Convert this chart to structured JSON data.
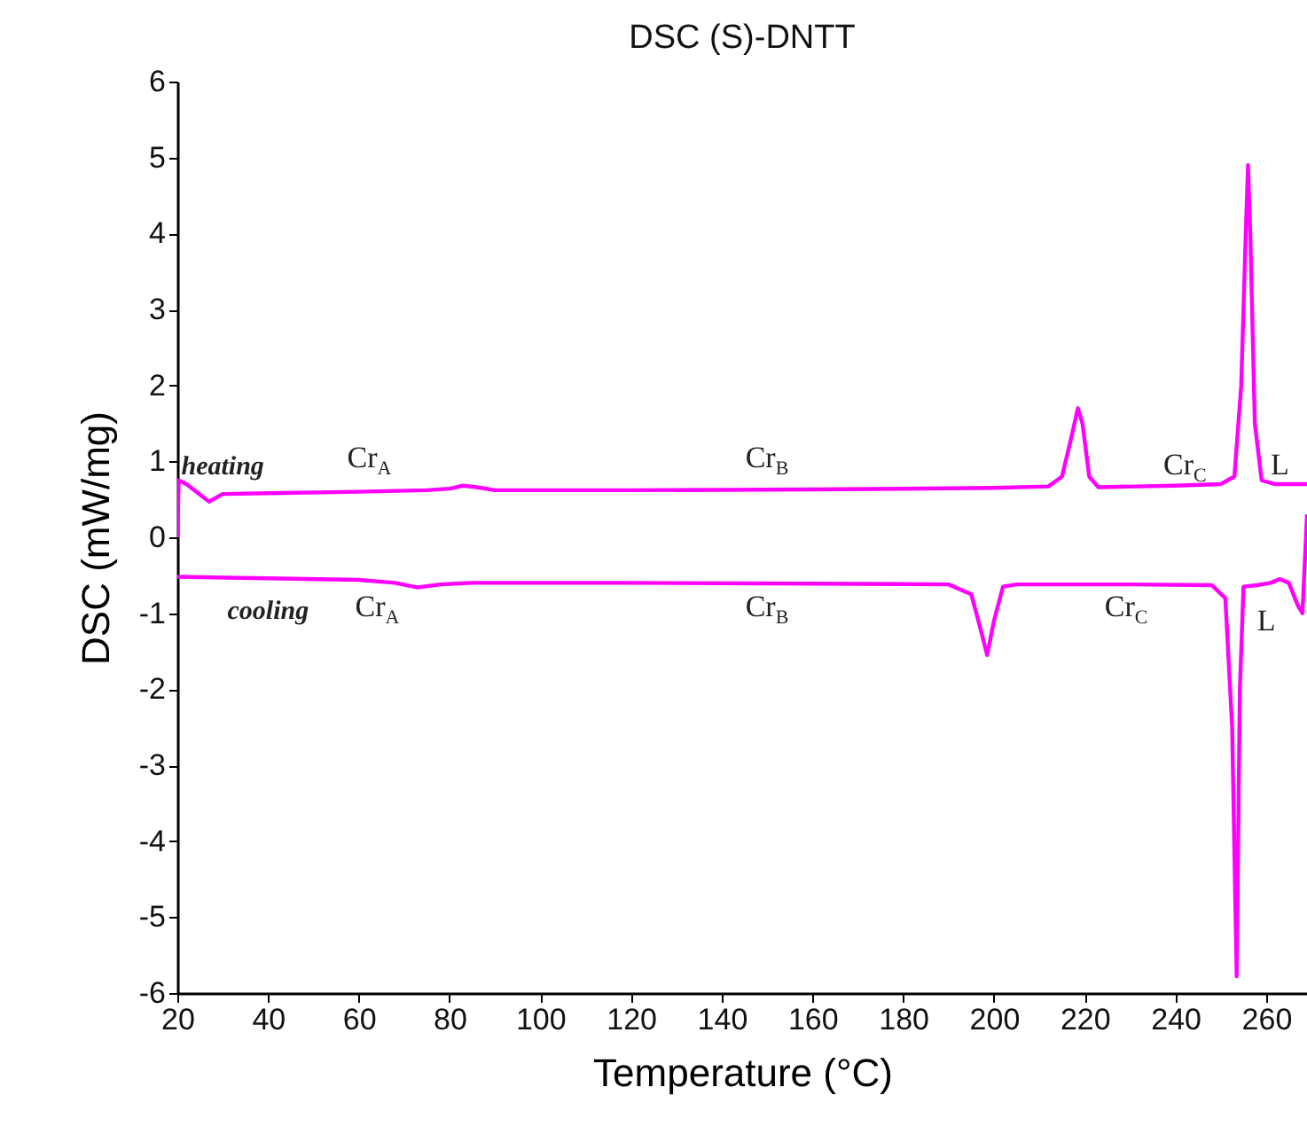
{
  "chart_data": {
    "type": "line",
    "title": "DSC (S)-DNTT",
    "xlabel": "Temperature (°C)",
    "ylabel": "DSC (mW/mg)",
    "xlim": [
      20,
      269
    ],
    "ylim": [
      -6,
      6
    ],
    "xticks": [
      20,
      40,
      60,
      80,
      100,
      120,
      140,
      160,
      180,
      200,
      220,
      240,
      260
    ],
    "yticks": [
      -6,
      -5,
      -4,
      -3,
      -2,
      -1,
      0,
      1,
      2,
      3,
      4,
      5,
      6
    ],
    "grid": false,
    "legend": false,
    "line_style": "solid",
    "series": [
      {
        "name": "heating",
        "color": "#ff00ff",
        "x": [
          20,
          20.3,
          22,
          27,
          30,
          40,
          60,
          75,
          80,
          83,
          86,
          90,
          120,
          160,
          200,
          212,
          215,
          217,
          218.5,
          219.5,
          221,
          223,
          240,
          250,
          253,
          254.5,
          255.5,
          256,
          256.5,
          257.5,
          259,
          262,
          269
        ],
        "values": [
          0,
          0.75,
          0.7,
          0.47,
          0.57,
          0.58,
          0.6,
          0.62,
          0.64,
          0.68,
          0.66,
          0.62,
          0.62,
          0.63,
          0.65,
          0.67,
          0.8,
          1.3,
          1.7,
          1.5,
          0.8,
          0.66,
          0.68,
          0.7,
          0.8,
          2.0,
          4.0,
          4.9,
          4.0,
          1.5,
          0.75,
          0.7,
          0.7
        ]
      },
      {
        "name": "cooling",
        "color": "#ff00ff",
        "x": [
          20,
          40,
          60,
          68,
          73,
          78,
          85,
          120,
          160,
          190,
          195,
          197,
          198.5,
          200,
          202,
          205,
          230,
          248,
          251,
          252.5,
          253.5,
          254.2,
          255,
          258,
          261,
          263,
          265,
          267,
          268,
          269
        ],
        "values": [
          -0.52,
          -0.54,
          -0.56,
          -0.6,
          -0.66,
          -0.62,
          -0.6,
          -0.6,
          -0.61,
          -0.62,
          -0.75,
          -1.2,
          -1.55,
          -1.1,
          -0.65,
          -0.62,
          -0.62,
          -0.63,
          -0.8,
          -2.5,
          -5.78,
          -2.0,
          -0.65,
          -0.63,
          -0.6,
          -0.55,
          -0.6,
          -0.9,
          -1.0,
          0.3
        ]
      }
    ],
    "annotations": [
      "Cr$_{A}$",
      "Cr$_{B}$",
      "Cr$_{C}$",
      "L",
      "Cr$_{A}$",
      "Cr$_{B}$",
      "Cr$_{C}$",
      "L"
    ]
  }
}
